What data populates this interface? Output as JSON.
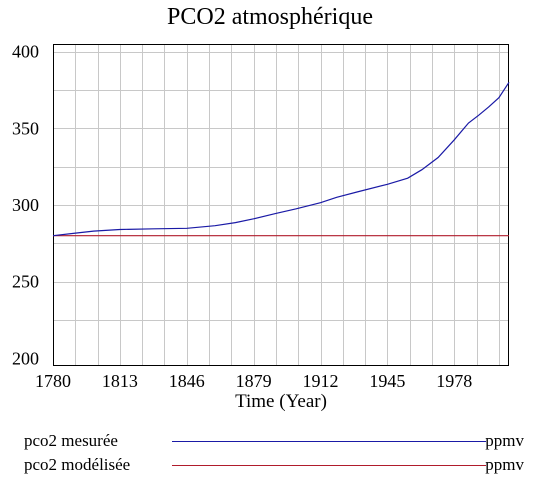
{
  "chart_data": {
    "type": "line",
    "title": "PCO2 atmosphérique",
    "xlabel": "Time (Year)",
    "ylabel": "",
    "xlim": [
      1780,
      2005
    ],
    "ylim": [
      195,
      405
    ],
    "x_ticks": [
      "1780",
      "1813",
      "1846",
      "1879",
      "1912",
      "1945",
      "1978"
    ],
    "y_ticks": [
      "400",
      "350",
      "300",
      "250",
      "200"
    ],
    "grid": true,
    "legend_position": "bottom",
    "series": [
      {
        "name": "pco2 mesurée",
        "unit": "ppmv",
        "color": "#1a1aa6",
        "x": [
          1780,
          1790,
          1800,
          1813,
          1830,
          1846,
          1860,
          1870,
          1879,
          1890,
          1900,
          1912,
          1920,
          1930,
          1945,
          1955,
          1962,
          1970,
          1978,
          1985,
          1990,
          1995,
          2000,
          2005
        ],
        "y": [
          280,
          281.5,
          283,
          284,
          284.5,
          284.8,
          286.5,
          288.5,
          291,
          294.5,
          297.5,
          301.5,
          305,
          308.5,
          313.5,
          317.5,
          323,
          331,
          342.5,
          353.5,
          358.5,
          364,
          370,
          380
        ]
      },
      {
        "name": "pco2 modélisée",
        "unit": "ppmv",
        "color": "#b01c2c",
        "x": [
          1780,
          2005
        ],
        "y": [
          280,
          280
        ]
      }
    ]
  }
}
